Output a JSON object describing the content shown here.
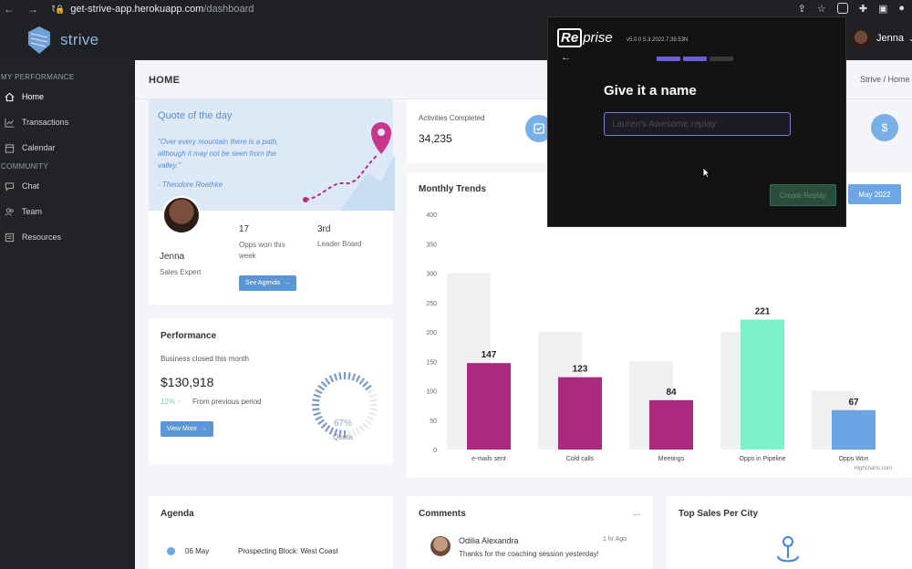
{
  "browser": {
    "url_host": "get-strive-app.herokuapp.com",
    "url_path": "/dashboard"
  },
  "app": {
    "brand": "strive",
    "user_name": "Jenna"
  },
  "sidebar": {
    "sections": [
      {
        "title": "MY PERFORMANCE",
        "items": [
          {
            "label": "Home",
            "icon": "home-icon"
          },
          {
            "label": "Transactions",
            "icon": "chart-icon"
          },
          {
            "label": "Calendar",
            "icon": "calendar-icon"
          }
        ]
      },
      {
        "title": "COMMUNITY",
        "items": [
          {
            "label": "Chat",
            "icon": "chat-icon"
          },
          {
            "label": "Team",
            "icon": "team-icon"
          },
          {
            "label": "Resources",
            "icon": "resources-icon"
          }
        ]
      }
    ]
  },
  "page": {
    "title": "HOME",
    "breadcrumb": "Strive  /  Home"
  },
  "quote": {
    "title": "Quote of the day",
    "text": "\"Over every mountain there is a path, although it may not be seen from the valley.\"",
    "author": "- Theodore Roethke",
    "profile_name": "Jenna",
    "profile_role": "Sales Expert",
    "stat1_value": "17",
    "stat1_label": "Opps won this week",
    "stat2_value": "3rd",
    "stat2_label": "Leader Board",
    "button": "See Agenda"
  },
  "performance": {
    "title": "Performance",
    "subtitle": "Business closed this month",
    "value": "$130,918",
    "change": "12%",
    "change_label": "From previous period",
    "button": "View More",
    "gauge_value": "67%",
    "gauge_label": "Quota",
    "gauge_fraction": 0.67
  },
  "activities": {
    "title": "Activities Completed",
    "value": "34,235"
  },
  "trends": {
    "title": "Monthly Trends",
    "period_button": "May 2022",
    "credit": "Highcharts.com"
  },
  "chart_data": {
    "type": "bar",
    "categories": [
      "e-mails sent",
      "Cold calls",
      "Meetings",
      "Opps in Pipeline",
      "Opps Won"
    ],
    "values": [
      147,
      123,
      84,
      221,
      67
    ],
    "target_values": [
      300,
      200,
      150,
      200,
      100
    ],
    "bar_colors": [
      "#a8297f",
      "#a8297f",
      "#a8297f",
      "#7cf2c9",
      "#6aa6e4"
    ],
    "ylim": [
      0,
      400
    ],
    "yticks": [
      0,
      50,
      100,
      150,
      200,
      250,
      300,
      350,
      400
    ]
  },
  "agenda": {
    "title": "Agenda",
    "items": [
      {
        "date": "06 May",
        "text": "Prospecting Block: West Coast"
      }
    ]
  },
  "comments": {
    "title": "Comments",
    "more": "...",
    "items": [
      {
        "name": "Odilia Alexandra",
        "time": "1 hr Ago",
        "text": "Thanks for the coaching session yesterday!"
      }
    ]
  },
  "top_sales": {
    "title": "Top Sales Per City"
  },
  "reprise": {
    "logo_box": "Re",
    "logo_rest": "prise",
    "version": "v5.0.0 5.3.2022.7.39.53N",
    "heading": "Give it a name",
    "input_placeholder": "Lauren's Awesome replay",
    "create_button": "Create Replay",
    "step_colors": [
      "#6b5fd6",
      "#6b5fd6",
      "#3a3a3a"
    ]
  }
}
